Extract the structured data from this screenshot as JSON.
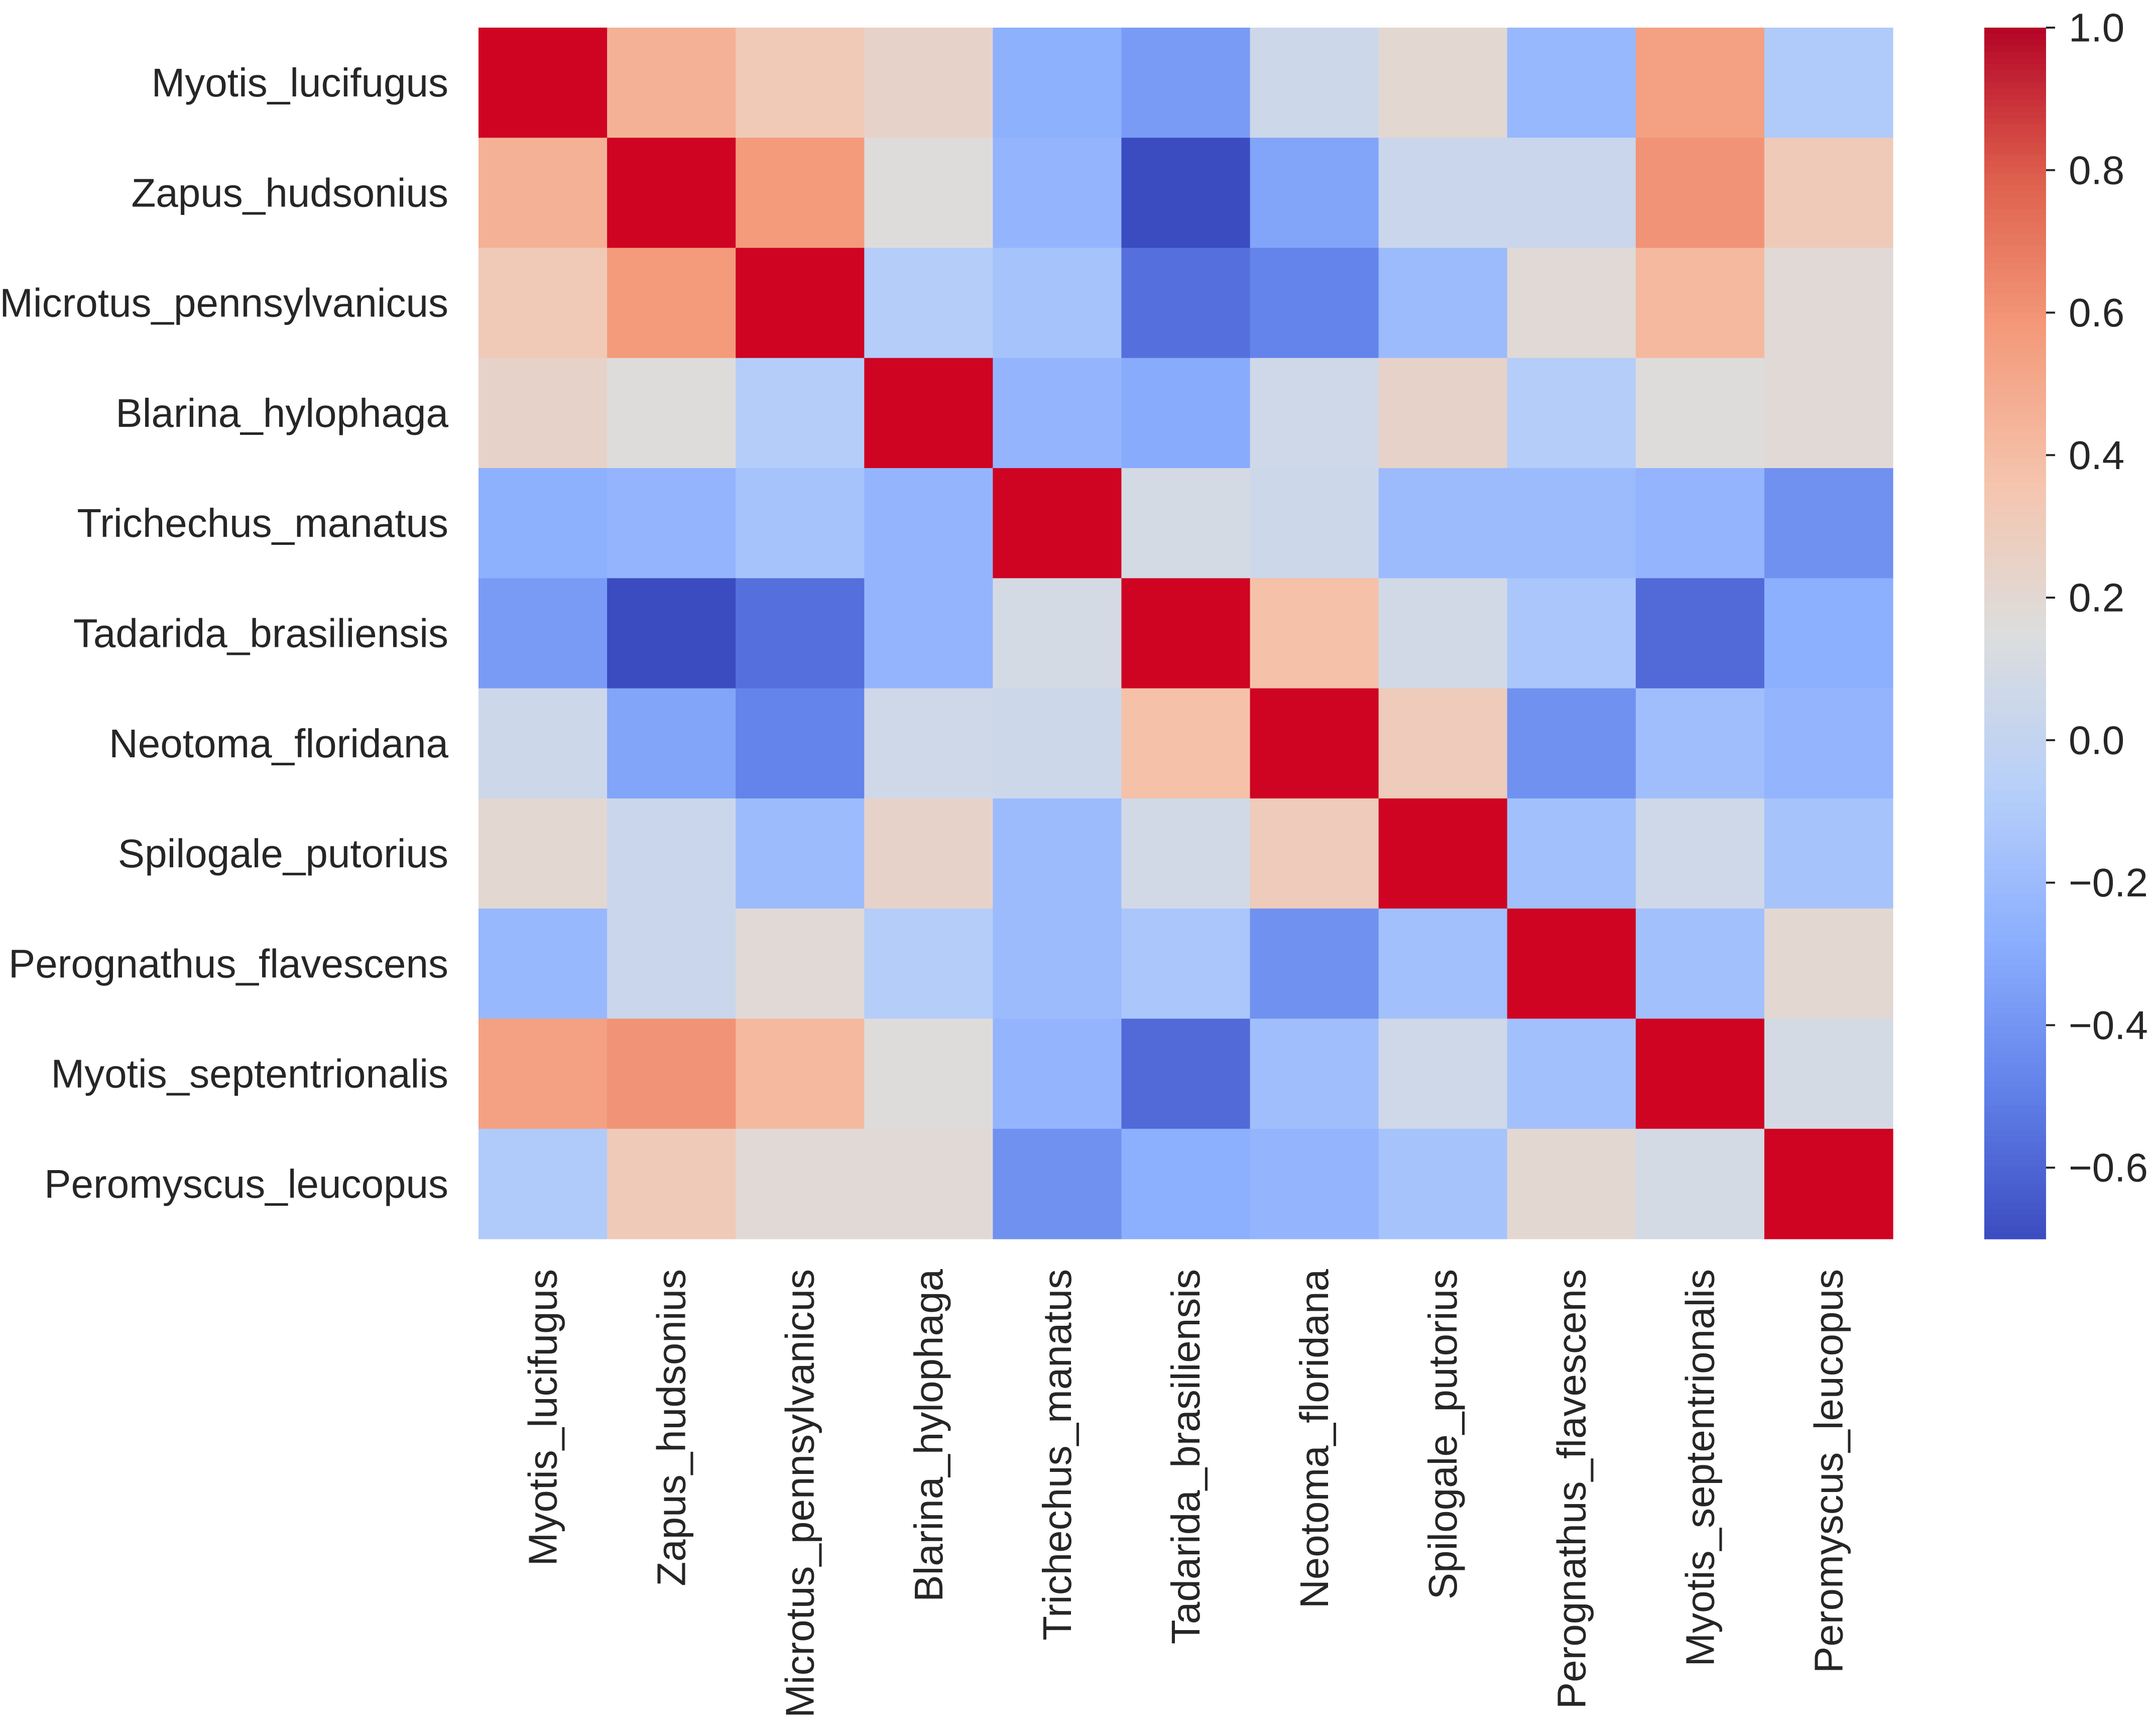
{
  "chart_data": {
    "type": "heatmap",
    "title": "",
    "xlabel": "",
    "ylabel": "",
    "labels": [
      "Myotis_lucifugus",
      "Zapus_hudsonius",
      "Microtus_pennsylvanicus",
      "Blarina_hylophaga",
      "Trichechus_manatus",
      "Tadarida_brasiliensis",
      "Neotoma_floridana",
      "Spilogale_putorius",
      "Perognathus_flavescens",
      "Myotis_septentrionalis",
      "Peromyscus_leucopus"
    ],
    "matrix": [
      [
        1.0,
        0.46,
        0.32,
        0.24,
        -0.27,
        -0.37,
        0.05,
        0.2,
        -0.22,
        0.54,
        -0.1
      ],
      [
        0.46,
        1.0,
        0.57,
        0.16,
        -0.24,
        -0.7,
        -0.33,
        0.04,
        0.04,
        0.6,
        0.31
      ],
      [
        0.32,
        0.57,
        1.0,
        -0.08,
        -0.15,
        -0.56,
        -0.48,
        -0.2,
        0.18,
        0.42,
        0.18
      ],
      [
        0.24,
        0.16,
        -0.08,
        1.0,
        -0.24,
        -0.3,
        0.07,
        0.24,
        -0.08,
        0.16,
        0.18
      ],
      [
        -0.27,
        -0.24,
        -0.15,
        -0.24,
        1.0,
        0.1,
        0.05,
        -0.2,
        -0.2,
        -0.24,
        -0.42
      ],
      [
        -0.37,
        -0.7,
        -0.56,
        -0.24,
        0.1,
        1.0,
        0.38,
        0.08,
        -0.13,
        -0.58,
        -0.28
      ],
      [
        0.05,
        -0.33,
        -0.48,
        0.07,
        0.05,
        0.38,
        1.0,
        0.3,
        -0.42,
        -0.18,
        -0.24
      ],
      [
        0.2,
        0.04,
        -0.2,
        0.24,
        -0.2,
        0.08,
        0.3,
        1.0,
        -0.17,
        0.07,
        -0.15
      ],
      [
        -0.22,
        0.04,
        0.18,
        -0.08,
        -0.2,
        -0.13,
        -0.42,
        -0.17,
        1.0,
        -0.17,
        0.2
      ],
      [
        0.54,
        0.6,
        0.42,
        0.16,
        -0.24,
        -0.58,
        -0.18,
        0.07,
        -0.17,
        1.0,
        0.1
      ],
      [
        -0.1,
        0.31,
        0.18,
        0.18,
        -0.42,
        -0.28,
        -0.24,
        -0.15,
        0.2,
        0.1,
        1.0
      ]
    ],
    "colormap": "coolwarm",
    "vmin": -0.7,
    "vmax": 1.0,
    "colorbar": {
      "ticks": [
        1.0,
        0.8,
        0.6,
        0.4,
        0.2,
        0.0,
        -0.2,
        -0.4,
        -0.6
      ],
      "tick_labels": [
        "1.0",
        "0.8",
        "0.6",
        "0.4",
        "0.2",
        "0.0",
        "−0.2",
        "−0.4",
        "−0.6"
      ]
    },
    "legend_position": "right",
    "grid": false
  }
}
